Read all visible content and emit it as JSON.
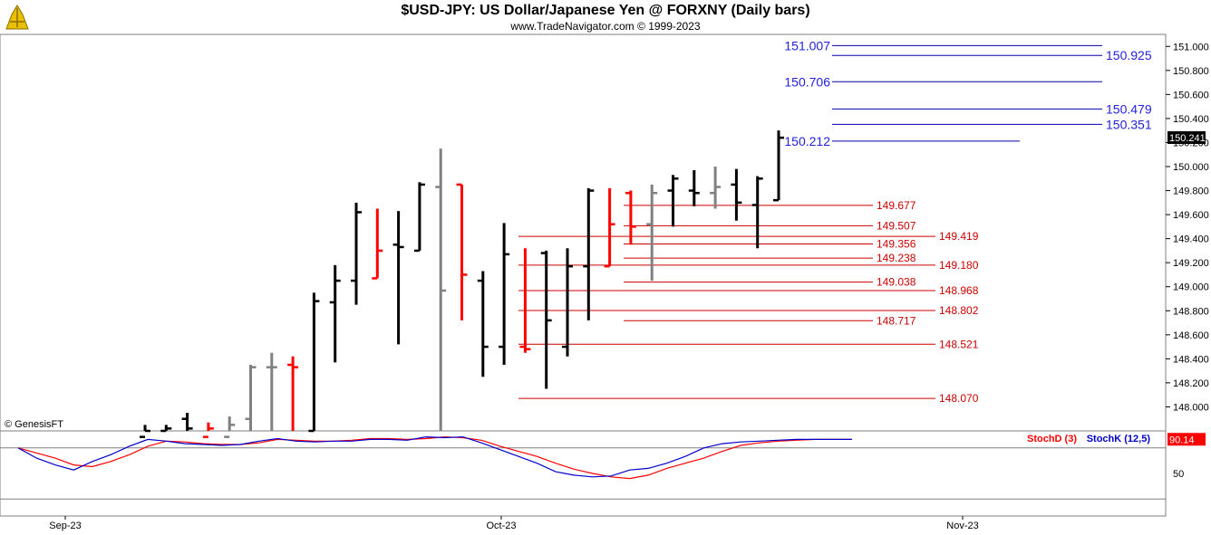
{
  "header": {
    "title": "$USD-JPY:  US Dollar/Japanese Yen @ FORXNY  (Daily bars)",
    "subtitle": "www.TradeNavigator.com © 1999-2023",
    "watermark": "© GenesisFT"
  },
  "chart_data": {
    "type": "ohlc",
    "ylim": [
      147.8,
      151.1
    ],
    "y_ticks": [
      "151.000",
      "150.800",
      "150.600",
      "150.400",
      "150.200",
      "150.000",
      "149.800",
      "149.600",
      "149.400",
      "149.200",
      "149.000",
      "148.800",
      "148.600",
      "148.400",
      "148.200",
      "148.000"
    ],
    "last_price_label": "150.241",
    "last_price": 150.241,
    "x_labels": [
      "Sep-23",
      "Oct-23",
      "Nov-23"
    ],
    "bars": [
      {
        "h": 147.85,
        "l": 147.7,
        "o": 147.75,
        "c": 147.8,
        "color": "#000000"
      },
      {
        "h": 147.85,
        "l": 147.7,
        "o": 147.8,
        "c": 147.82,
        "color": "#000000"
      },
      {
        "h": 147.95,
        "l": 147.7,
        "o": 147.9,
        "c": 147.82,
        "color": "#000000"
      },
      {
        "h": 147.87,
        "l": 147.7,
        "o": 147.75,
        "c": 147.82,
        "color": "#ff0000"
      },
      {
        "h": 147.92,
        "l": 147.7,
        "o": 147.75,
        "c": 147.85,
        "color": "#808080"
      },
      {
        "h": 148.35,
        "l": 147.8,
        "o": 147.9,
        "c": 148.33,
        "color": "#808080"
      },
      {
        "h": 148.45,
        "l": 147.8,
        "o": 148.33,
        "c": 148.33,
        "color": "#808080"
      },
      {
        "h": 148.42,
        "l": 147.8,
        "o": 148.35,
        "c": 148.33,
        "color": "#ff0000"
      },
      {
        "h": 148.95,
        "l": 147.8,
        "o": 147.8,
        "c": 148.88,
        "color": "#000000"
      },
      {
        "h": 149.18,
        "l": 148.37,
        "o": 148.87,
        "c": 149.05,
        "color": "#000000"
      },
      {
        "h": 149.7,
        "l": 148.85,
        "o": 149.05,
        "c": 149.62,
        "color": "#000000"
      },
      {
        "h": 149.65,
        "l": 149.07,
        "o": 149.07,
        "c": 149.3,
        "color": "#ff0000"
      },
      {
        "h": 149.63,
        "l": 148.52,
        "o": 149.35,
        "c": 149.33,
        "color": "#000000"
      },
      {
        "h": 149.87,
        "l": 149.3,
        "o": 149.3,
        "c": 149.85,
        "color": "#000000"
      },
      {
        "h": 150.15,
        "l": 147.7,
        "o": 149.83,
        "c": 148.968,
        "color": "#808080"
      },
      {
        "h": 149.85,
        "l": 148.72,
        "o": 149.85,
        "c": 149.1,
        "color": "#ff0000"
      },
      {
        "h": 149.13,
        "l": 148.25,
        "o": 149.05,
        "c": 148.5,
        "color": "#000000"
      },
      {
        "h": 149.53,
        "l": 148.35,
        "o": 148.5,
        "c": 149.27,
        "color": "#000000"
      },
      {
        "h": 149.32,
        "l": 148.45,
        "o": 148.5,
        "c": 148.48,
        "color": "#ff0000"
      },
      {
        "h": 149.3,
        "l": 148.15,
        "o": 149.28,
        "c": 148.72,
        "color": "#000000"
      },
      {
        "h": 149.32,
        "l": 148.42,
        "o": 148.5,
        "c": 149.17,
        "color": "#000000"
      },
      {
        "h": 149.82,
        "l": 148.72,
        "o": 149.17,
        "c": 149.8,
        "color": "#000000"
      },
      {
        "h": 149.82,
        "l": 149.17,
        "o": 149.17,
        "c": 149.52,
        "color": "#ff0000"
      },
      {
        "h": 149.8,
        "l": 149.35,
        "o": 149.78,
        "c": 149.5,
        "color": "#ff0000"
      },
      {
        "h": 149.85,
        "l": 149.05,
        "o": 149.52,
        "c": 149.78,
        "color": "#808080"
      },
      {
        "h": 149.93,
        "l": 149.5,
        "o": 149.8,
        "c": 149.9,
        "color": "#000000"
      },
      {
        "h": 149.97,
        "l": 149.67,
        "o": 149.8,
        "c": 149.78,
        "color": "#000000"
      },
      {
        "h": 150.0,
        "l": 149.65,
        "o": 149.78,
        "c": 149.83,
        "color": "#808080"
      },
      {
        "h": 149.98,
        "l": 149.55,
        "o": 149.85,
        "c": 149.7,
        "color": "#000000"
      },
      {
        "h": 149.92,
        "l": 149.32,
        "o": 149.68,
        "c": 149.9,
        "color": "#000000"
      },
      {
        "h": 150.3,
        "l": 149.72,
        "o": 149.72,
        "c": 150.24,
        "color": "#000000"
      }
    ],
    "blue_levels": [
      {
        "value": 151.007,
        "label": "151.007",
        "side": "left"
      },
      {
        "value": 150.925,
        "label": "150.925",
        "side": "right"
      },
      {
        "value": 150.706,
        "label": "150.706",
        "side": "left"
      },
      {
        "value": 150.479,
        "label": "150.479",
        "side": "right"
      },
      {
        "value": 150.351,
        "label": "150.351",
        "side": "right"
      },
      {
        "value": 150.212,
        "label": "150.212",
        "side": "left"
      }
    ],
    "red_levels": [
      {
        "value": 149.677,
        "label": "149.677",
        "group": "a"
      },
      {
        "value": 149.507,
        "label": "149.507",
        "group": "a"
      },
      {
        "value": 149.419,
        "label": "149.419",
        "group": "b"
      },
      {
        "value": 149.356,
        "label": "149.356",
        "group": "a"
      },
      {
        "value": 149.238,
        "label": "149.238",
        "group": "a"
      },
      {
        "value": 149.18,
        "label": "149.180",
        "group": "b"
      },
      {
        "value": 149.038,
        "label": "149.038",
        "group": "a"
      },
      {
        "value": 148.968,
        "label": "148.968",
        "group": "b"
      },
      {
        "value": 148.802,
        "label": "148.802",
        "group": "b"
      },
      {
        "value": 148.717,
        "label": "148.717",
        "group": "a"
      },
      {
        "value": 148.521,
        "label": "148.521",
        "group": "b"
      },
      {
        "value": 148.07,
        "label": "148.070",
        "group": "b"
      }
    ],
    "stoch": {
      "ylim": [
        0,
        100
      ],
      "ref_lines": [
        80,
        20
      ],
      "tick_label": "50",
      "tick_value": 50,
      "last_label": "90.14",
      "last_value": 90.14,
      "stochD": {
        "name": "StochD (3)",
        "color": "#ff0000",
        "values": [
          80,
          74,
          68,
          60,
          58,
          64,
          72,
          82,
          88,
          87,
          85,
          84,
          84,
          86,
          90,
          89,
          88,
          88,
          89,
          91,
          91,
          90,
          91,
          93,
          92,
          89,
          82,
          76,
          70,
          62,
          55,
          50,
          46,
          44,
          48,
          56,
          62,
          68,
          76,
          83,
          86,
          88,
          89,
          90,
          90,
          90
        ]
      },
      "stochK": {
        "name": "StochK (12,5)",
        "color": "#0000cc",
        "values": [
          80,
          68,
          60,
          54,
          64,
          72,
          82,
          90,
          88,
          85,
          84,
          83,
          84,
          88,
          91,
          88,
          87,
          88,
          88,
          90,
          90,
          89,
          93,
          92,
          93,
          86,
          78,
          70,
          62,
          52,
          48,
          46,
          47,
          54,
          56,
          62,
          70,
          80,
          85,
          87,
          88,
          89,
          90,
          90,
          90,
          90
        ]
      }
    }
  }
}
